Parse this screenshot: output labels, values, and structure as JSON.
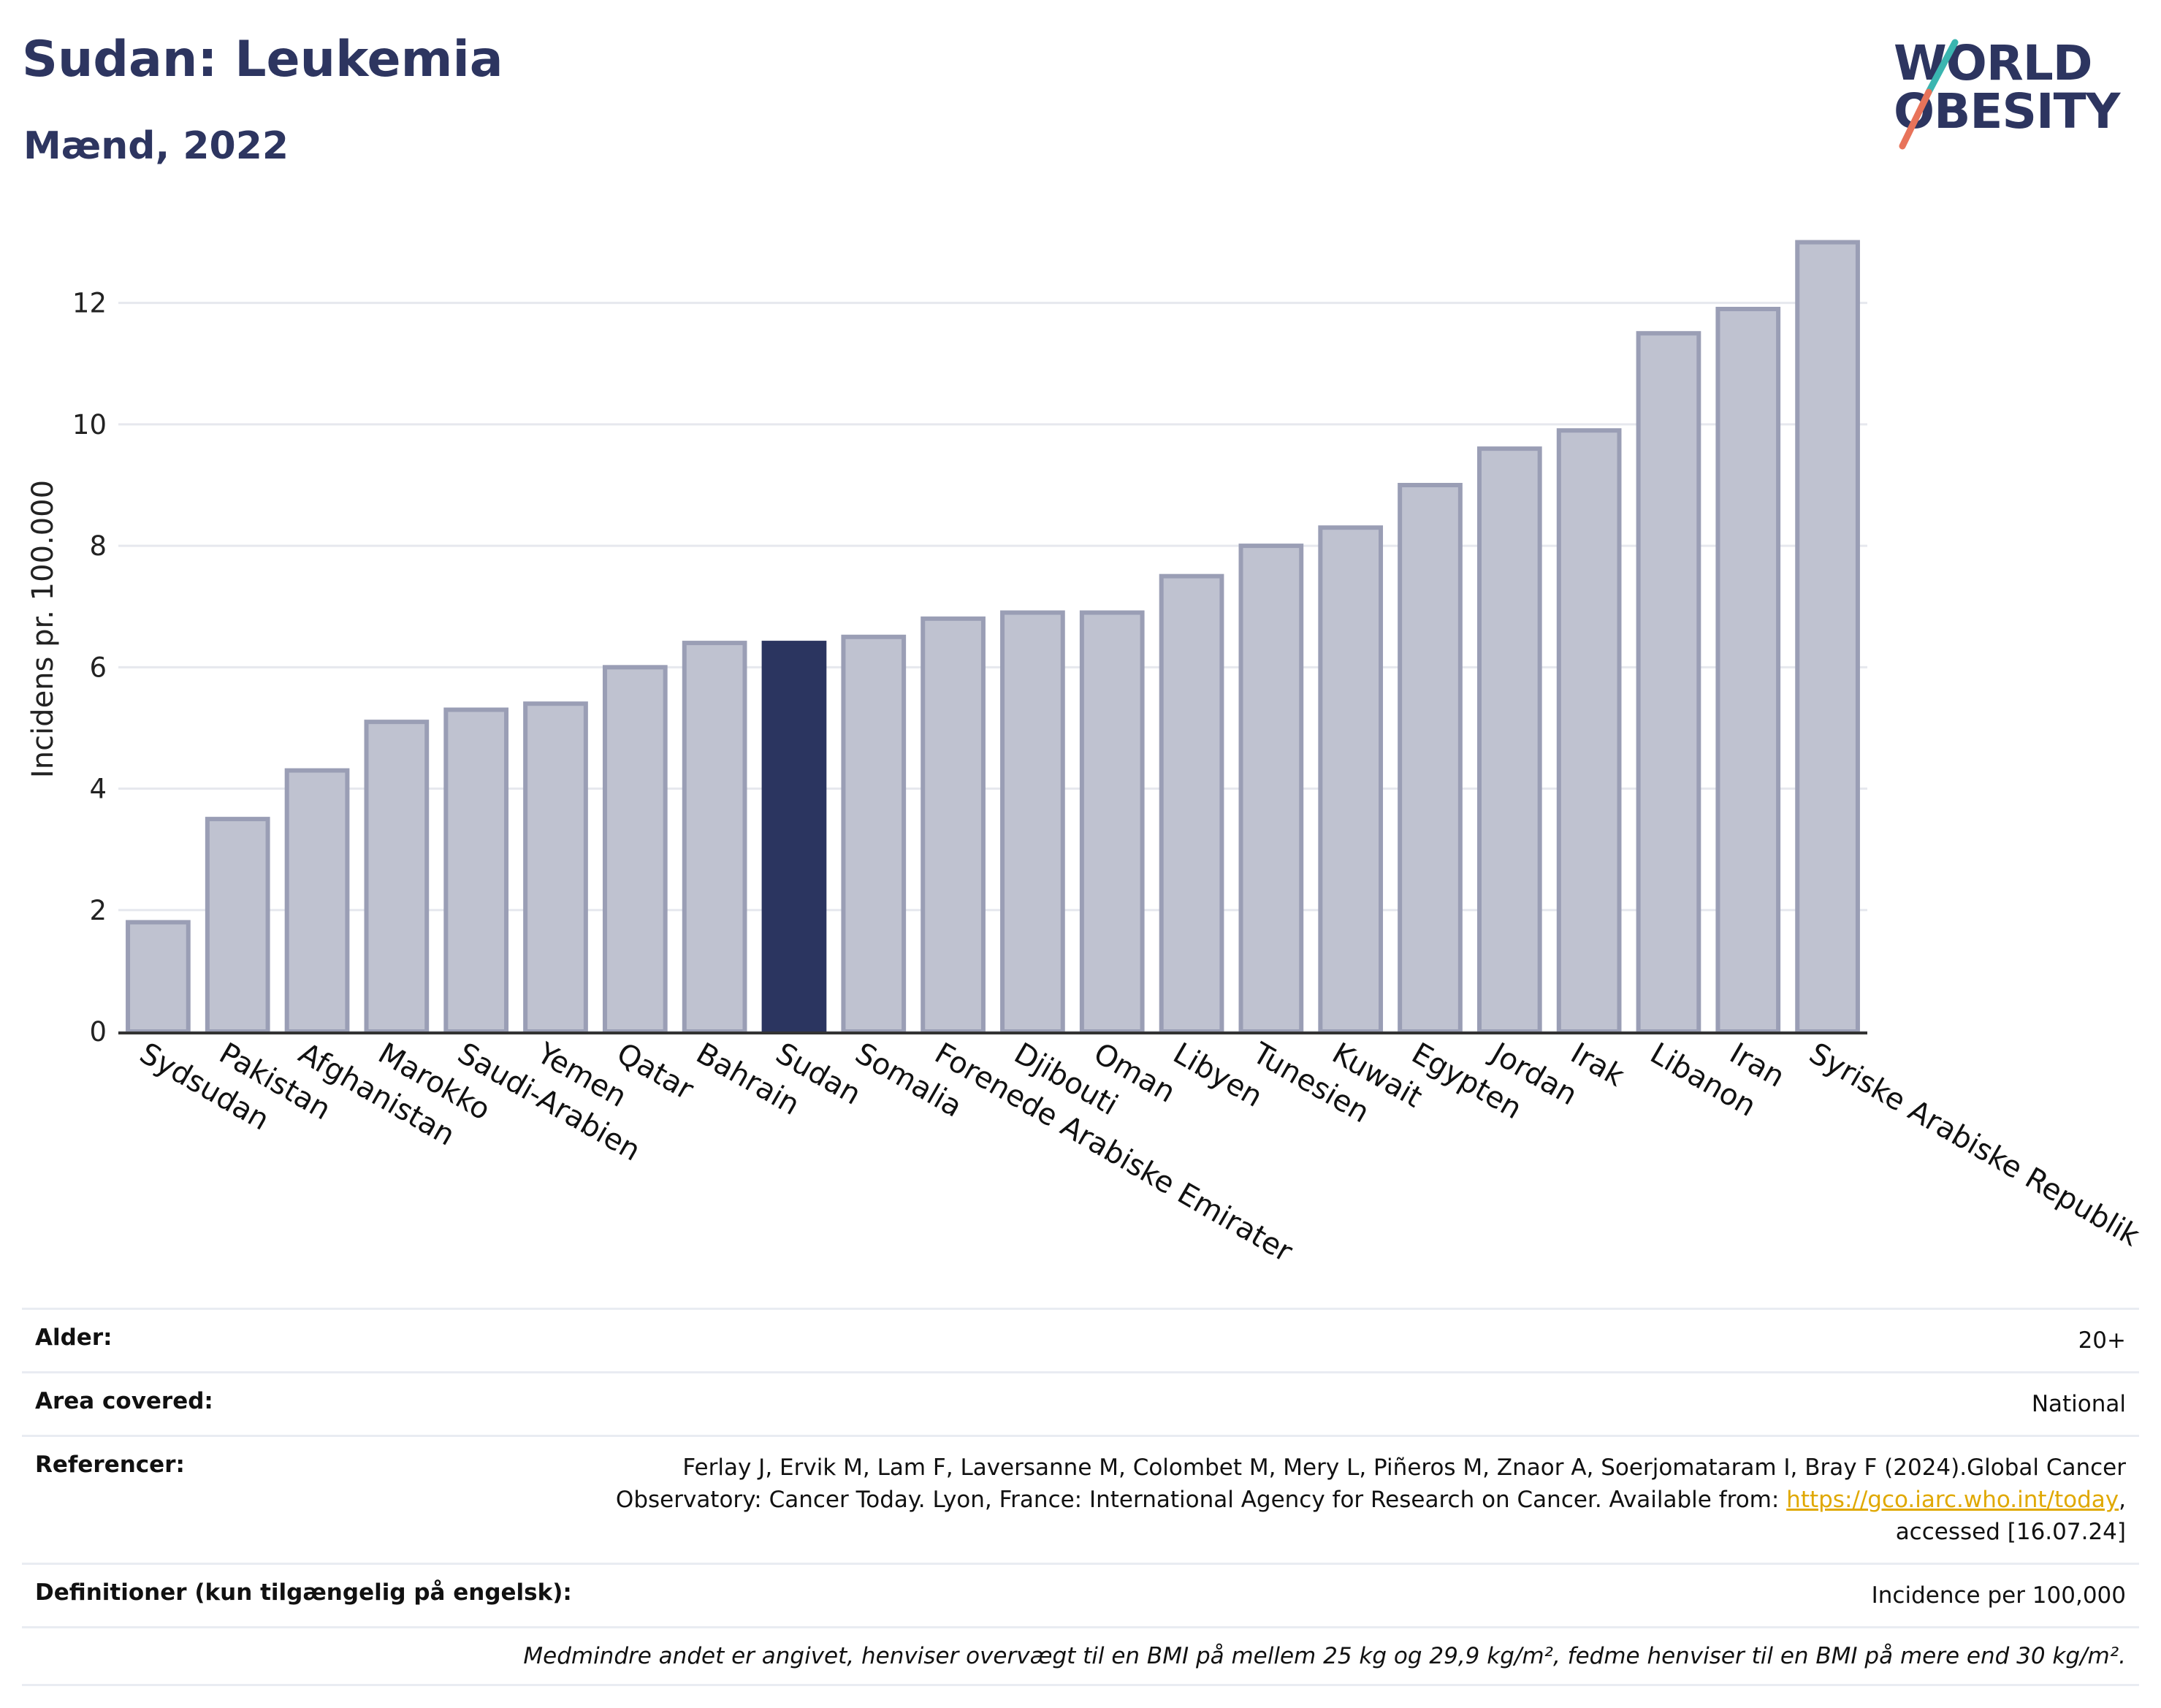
{
  "header": {
    "title": "Sudan: Leukemia",
    "subtitle": "Mænd, 2022",
    "logo_line1": "WORLD",
    "logo_line2": "OBESITY"
  },
  "colors": {
    "highlight": "#2b3560",
    "bar_fill": "#bfc2d0",
    "bar_stroke": "#9a9eb5",
    "logo_navy": "#2d3560",
    "logo_teal": "#3ab5b0",
    "logo_coral": "#e8735a"
  },
  "chart_data": {
    "type": "bar",
    "ylabel": "Incidens pr. 100.000",
    "ylim": [
      0,
      13.5
    ],
    "yticks": [
      0,
      2,
      4,
      6,
      8,
      10,
      12
    ],
    "grid": true,
    "highlight": "Sudan",
    "categories": [
      "Sydsudan",
      "Pakistan",
      "Afghanistan",
      "Marokko",
      "Saudi-Arabien",
      "Yemen",
      "Qatar",
      "Bahrain",
      "Sudan",
      "Somalia",
      "Forenede Arabiske Emirater",
      "Djibouti",
      "Oman",
      "Libyen",
      "Tunesien",
      "Kuwait",
      "Egypten",
      "Jordan",
      "Irak",
      "Libanon",
      "Iran",
      "Syriske Arabiske Republik"
    ],
    "values": [
      1.8,
      3.5,
      4.3,
      5.1,
      5.3,
      5.4,
      6.0,
      6.4,
      6.4,
      6.5,
      6.8,
      6.9,
      6.9,
      7.5,
      8.0,
      8.3,
      9.0,
      9.6,
      9.9,
      11.5,
      11.9,
      13.0
    ]
  },
  "info": {
    "age_label": "Alder:",
    "age_value": "20+",
    "area_label": "Area covered:",
    "area_value": "National",
    "ref_label": "Referencer:",
    "ref_text_1": "Ferlay J, Ervik M, Lam F, Laversanne M, Colombet M, Mery L, Piñeros M, Znaor A, Soerjomataram I, Bray F (2024).Global Cancer Observatory: Cancer Today. Lyon, France: International Agency for Research on Cancer. Available from: ",
    "ref_link": "https://gco.iarc.who.int/today",
    "ref_text_2": ", accessed [16.07.24]",
    "def_label": "Definitioner (kun tilgængelig på engelsk):",
    "def_value": "Incidence per 100,000",
    "note": "Medmindre andet er angivet, henviser overvægt til en BMI på mellem 25 kg og 29,9 kg/m², fedme henviser til en BMI på mere end 30 kg/m²."
  }
}
